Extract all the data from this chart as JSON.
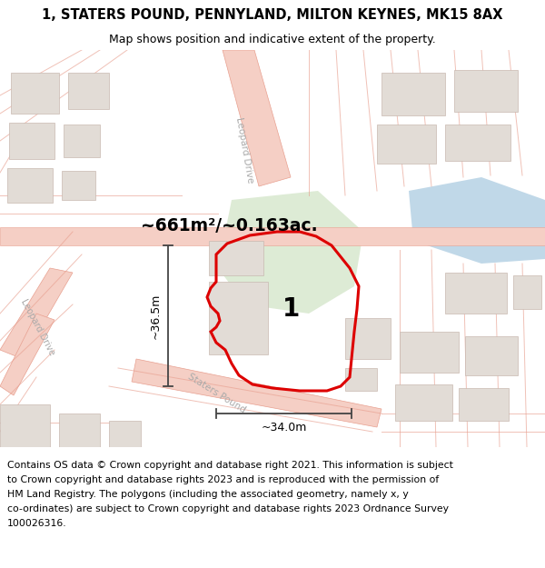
{
  "title": "1, STATERS POUND, PENNYLAND, MILTON KEYNES, MK15 8AX",
  "subtitle": "Map shows position and indicative extent of the property.",
  "area_text": "~661m²/~0.163ac.",
  "width_label": "~34.0m",
  "height_label": "~36.5m",
  "plot_number": "1",
  "footer_line1": "Contains OS data © Crown copyright and database right 2021. This information is subject",
  "footer_line2": "to Crown copyright and database rights 2023 and is reproduced with the permission of",
  "footer_line3": "HM Land Registry. The polygons (including the associated geometry, namely x, y",
  "footer_line4": "co-ordinates) are subject to Crown copyright and database rights 2023 Ordnance Survey",
  "footer_line5": "100026316.",
  "bg_color": "#f0ebe5",
  "road_fill": "#f5cfc5",
  "road_edge": "#e8a090",
  "building_fill": "#e2dcd6",
  "building_edge": "#c8b8b0",
  "green_fill": "#ddebd5",
  "water_fill": "#c0d8e8",
  "property_red": "#dd0000",
  "dim_color": "#444444",
  "label_color": "#aaaaaa",
  "title_fs": 10.5,
  "subtitle_fs": 9,
  "area_fs": 13.5,
  "plot_num_fs": 20,
  "dim_fs": 9,
  "road_label_fs": 7.5,
  "footer_fs": 7.8
}
